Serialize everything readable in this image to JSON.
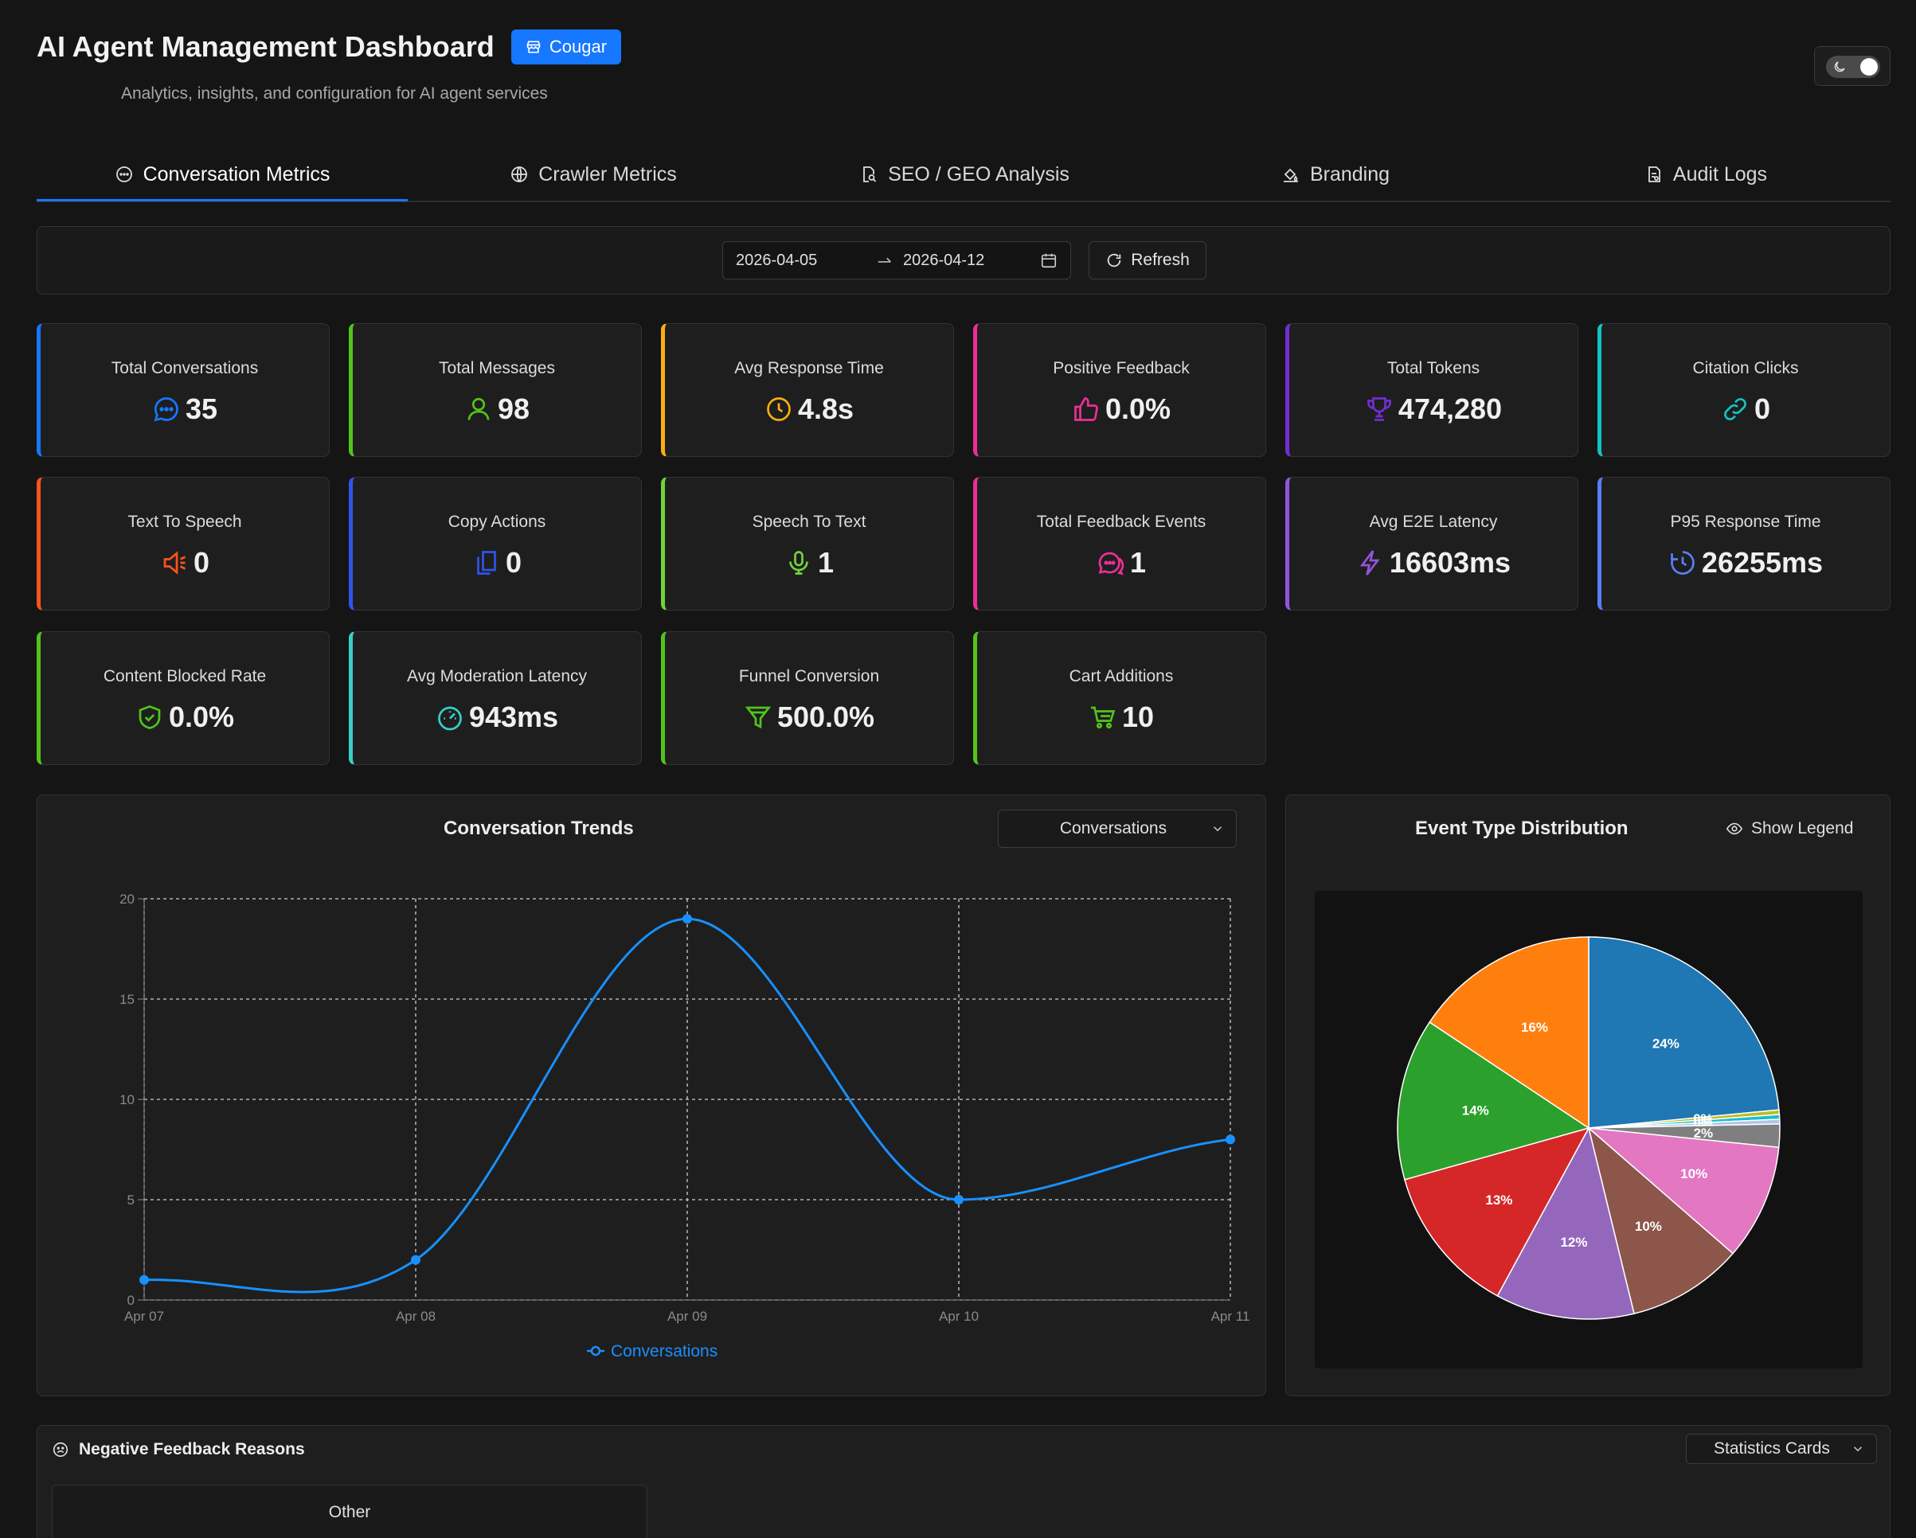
{
  "header": {
    "title": "AI Agent Management Dashboard",
    "tenant_badge": "Cougar",
    "subtitle": "Analytics, insights, and configuration for AI agent services"
  },
  "tabs": [
    {
      "label": "Conversation Metrics",
      "icon": "chat-bubble-icon",
      "active": true
    },
    {
      "label": "Crawler Metrics",
      "icon": "globe-icon",
      "active": false
    },
    {
      "label": "SEO / GEO Analysis",
      "icon": "file-search-icon",
      "active": false
    },
    {
      "label": "Branding",
      "icon": "paint-bucket-icon",
      "active": false
    },
    {
      "label": "Audit Logs",
      "icon": "audit-file-icon",
      "active": false
    }
  ],
  "filter": {
    "date_from": "2026-04-05",
    "date_to": "2026-04-12",
    "refresh_label": "Refresh"
  },
  "stats": [
    {
      "label": "Total Conversations",
      "value": "35",
      "icon": "message-icon",
      "color": "#1677ff"
    },
    {
      "label": "Total Messages",
      "value": "98",
      "icon": "user-icon",
      "color": "#52c41a"
    },
    {
      "label": "Avg Response Time",
      "value": "4.8s",
      "icon": "clock-icon",
      "color": "#faad14"
    },
    {
      "label": "Positive Feedback",
      "value": "0.0%",
      "icon": "thumbs-up-icon",
      "color": "#eb2f96"
    },
    {
      "label": "Total Tokens",
      "value": "474,280",
      "icon": "trophy-icon",
      "color": "#722ed1"
    },
    {
      "label": "Citation Clicks",
      "value": "0",
      "icon": "link-icon",
      "color": "#13c2c2"
    },
    {
      "label": "Text To Speech",
      "value": "0",
      "icon": "speaker-icon",
      "color": "#fa541c"
    },
    {
      "label": "Copy Actions",
      "value": "0",
      "icon": "copy-icon",
      "color": "#2f54eb"
    },
    {
      "label": "Speech To Text",
      "value": "1",
      "icon": "microphone-icon",
      "color": "#73d13d"
    },
    {
      "label": "Total Feedback Events",
      "value": "1",
      "icon": "chat-bubbles-icon",
      "color": "#eb2f96"
    },
    {
      "label": "Avg E2E Latency",
      "value": "16603ms",
      "icon": "lightning-icon",
      "color": "#9254de"
    },
    {
      "label": "P95 Response Time",
      "value": "26255ms",
      "icon": "history-clock-icon",
      "color": "#597ef7"
    },
    {
      "label": "Content Blocked Rate",
      "value": "0.0%",
      "icon": "shield-check-icon",
      "color": "#52c41a"
    },
    {
      "label": "Avg Moderation Latency",
      "value": "943ms",
      "icon": "dashboard-gauge-icon",
      "color": "#36cfc9"
    },
    {
      "label": "Funnel Conversion",
      "value": "500.0%",
      "icon": "funnel-icon",
      "color": "#52c41a"
    },
    {
      "label": "Cart Additions",
      "value": "10",
      "icon": "cart-icon",
      "color": "#52c41a"
    }
  ],
  "trend": {
    "title": "Conversation Trends",
    "selected_metric": "Conversations"
  },
  "distribution": {
    "title": "Event Type Distribution",
    "legend_toggle_label": "Show Legend"
  },
  "negative": {
    "title": "Negative Feedback Reasons",
    "view_select": "Statistics Cards",
    "first_card_label": "Other"
  },
  "chart_data": [
    {
      "type": "line",
      "title": "Conversation Trends",
      "x": [
        "Apr 07",
        "Apr 08",
        "Apr 09",
        "Apr 10",
        "Apr 11"
      ],
      "series": [
        {
          "name": "Conversations",
          "values": [
            1,
            2,
            19,
            5,
            8
          ],
          "color": "#1890ff"
        }
      ],
      "yticks": [
        0,
        5,
        10,
        15,
        20
      ],
      "ylim": [
        0,
        20
      ],
      "grid": true,
      "legend": "bottom"
    },
    {
      "type": "pie",
      "title": "Event Type Distribution",
      "slices": [
        {
          "value": 24,
          "label": "24%",
          "color": "#1f77b4"
        },
        {
          "value": 0.4,
          "label": "0%",
          "color": "#bcbd22"
        },
        {
          "value": 0.4,
          "label": "0%",
          "color": "#17becf"
        },
        {
          "value": 0.4,
          "label": "0%",
          "color": "#aec7e8"
        },
        {
          "value": 2,
          "label": "2%",
          "color": "#7f7f7f"
        },
        {
          "value": 10,
          "label": "10%",
          "color": "#e377c2"
        },
        {
          "value": 10,
          "label": "10%",
          "color": "#8c564b"
        },
        {
          "value": 12,
          "label": "12%",
          "color": "#9467bd"
        },
        {
          "value": 13,
          "label": "13%",
          "color": "#d62728"
        },
        {
          "value": 14,
          "label": "14%",
          "color": "#2ca02c"
        },
        {
          "value": 16,
          "label": "16%",
          "color": "#ff7f0e"
        }
      ],
      "legend": "hidden"
    }
  ]
}
